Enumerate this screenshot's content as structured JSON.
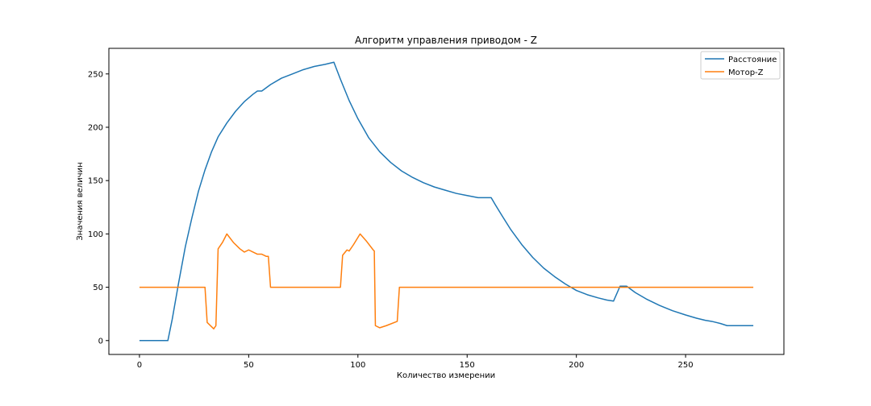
{
  "chart_data": {
    "type": "line",
    "title": "Алгоритм управления приводом - Z",
    "xlabel": "Количество измерении",
    "ylabel": "Значения величин",
    "xlim": [
      -14,
      295
    ],
    "ylim": [
      -13,
      274
    ],
    "xticks": [
      0,
      50,
      100,
      150,
      200,
      250
    ],
    "yticks": [
      0,
      50,
      100,
      150,
      200,
      250
    ],
    "grid": false,
    "legend_position": "top-right",
    "series": [
      {
        "name": "Расстояние",
        "color": "#1f77b4",
        "points": [
          [
            0,
            0
          ],
          [
            13,
            0
          ],
          [
            15,
            20
          ],
          [
            18,
            55
          ],
          [
            21,
            88
          ],
          [
            24,
            115
          ],
          [
            27,
            140
          ],
          [
            30,
            160
          ],
          [
            33,
            177
          ],
          [
            36,
            191
          ],
          [
            40,
            204
          ],
          [
            44,
            215
          ],
          [
            48,
            224
          ],
          [
            52,
            231
          ],
          [
            54,
            234
          ],
          [
            56,
            234
          ],
          [
            60,
            240
          ],
          [
            65,
            246
          ],
          [
            70,
            250
          ],
          [
            75,
            254
          ],
          [
            80,
            257
          ],
          [
            85,
            259
          ],
          [
            89,
            261
          ],
          [
            92,
            245
          ],
          [
            96,
            225
          ],
          [
            100,
            208
          ],
          [
            105,
            190
          ],
          [
            110,
            177
          ],
          [
            115,
            167
          ],
          [
            120,
            159
          ],
          [
            125,
            153
          ],
          [
            130,
            148
          ],
          [
            135,
            144
          ],
          [
            140,
            141
          ],
          [
            145,
            138
          ],
          [
            150,
            136
          ],
          [
            155,
            134
          ],
          [
            161,
            134
          ],
          [
            163,
            127
          ],
          [
            166,
            117
          ],
          [
            170,
            104
          ],
          [
            175,
            90
          ],
          [
            180,
            78
          ],
          [
            185,
            68
          ],
          [
            190,
            60
          ],
          [
            195,
            53
          ],
          [
            200,
            47
          ],
          [
            205,
            43
          ],
          [
            210,
            40
          ],
          [
            214,
            38
          ],
          [
            217,
            37
          ],
          [
            220,
            51
          ],
          [
            223,
            51
          ],
          [
            227,
            45
          ],
          [
            232,
            39
          ],
          [
            238,
            33
          ],
          [
            244,
            28
          ],
          [
            250,
            24
          ],
          [
            255,
            21
          ],
          [
            259,
            19
          ],
          [
            262,
            18
          ],
          [
            266,
            16
          ],
          [
            269,
            14
          ],
          [
            281,
            14
          ]
        ]
      },
      {
        "name": "Мотор-Z",
        "color": "#ff7f0e",
        "points": [
          [
            0,
            50
          ],
          [
            30,
            50
          ],
          [
            31,
            17
          ],
          [
            33,
            13
          ],
          [
            34,
            11
          ],
          [
            35,
            14
          ],
          [
            36,
            86
          ],
          [
            38,
            92
          ],
          [
            40,
            100
          ],
          [
            43,
            92
          ],
          [
            46,
            86
          ],
          [
            48,
            83
          ],
          [
            50,
            85
          ],
          [
            52,
            83
          ],
          [
            54,
            81
          ],
          [
            56,
            81
          ],
          [
            58,
            79
          ],
          [
            59,
            79
          ],
          [
            60,
            50
          ],
          [
            92,
            50
          ],
          [
            93,
            80
          ],
          [
            95,
            85
          ],
          [
            96,
            84
          ],
          [
            98,
            90
          ],
          [
            101,
            100
          ],
          [
            104,
            93
          ],
          [
            107,
            85
          ],
          [
            107.5,
            84
          ],
          [
            108,
            14
          ],
          [
            110,
            12
          ],
          [
            113,
            14
          ],
          [
            118,
            18
          ],
          [
            119,
            50
          ],
          [
            281,
            50
          ]
        ]
      }
    ]
  }
}
